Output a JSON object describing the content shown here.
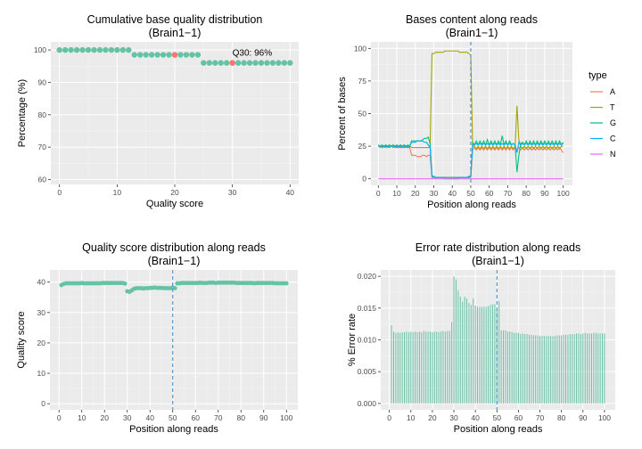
{
  "chart_data": [
    {
      "type": "scatter",
      "title": "Cumulative base quality distribution",
      "subtitle": "(Brain1−1)",
      "xlabel": "Quality score",
      "ylabel": "Percentage (%)",
      "xlim": [
        -1.5,
        41.5
      ],
      "ylim": [
        58.5,
        102.5
      ],
      "xticks": [
        0,
        10,
        20,
        30,
        40
      ],
      "yticks": [
        60,
        70,
        80,
        90,
        100
      ],
      "x": [
        0,
        1,
        2,
        3,
        4,
        5,
        6,
        7,
        8,
        9,
        10,
        11,
        12,
        13,
        14,
        15,
        16,
        17,
        18,
        19,
        20,
        21,
        22,
        23,
        24,
        25,
        26,
        27,
        28,
        29,
        30,
        31,
        32,
        33,
        34,
        35,
        36,
        37,
        38,
        39,
        40
      ],
      "y": [
        100,
        100,
        100,
        100,
        100,
        100,
        100,
        100,
        100,
        100,
        100,
        100,
        100,
        98.5,
        98.5,
        98.5,
        98.5,
        98.5,
        98.5,
        98.5,
        98.5,
        98.5,
        98.5,
        98.5,
        98.5,
        96,
        96,
        96,
        96,
        96,
        96,
        96,
        96,
        96,
        96,
        96,
        96,
        96,
        96,
        96,
        96
      ],
      "highlight": [
        {
          "x": 20,
          "y": 98.5
        },
        {
          "x": 30,
          "y": 96
        }
      ],
      "annotation": {
        "text": "Q30: 96%",
        "x": 30,
        "y": 96
      },
      "colors": {
        "points": "#66c2a5",
        "highlight": "#f8766d"
      }
    },
    {
      "type": "line",
      "title": "Bases content along reads",
      "subtitle": "(Brain1−1)",
      "xlabel": "Position along reads",
      "ylabel": "Percent of bases",
      "xlim": [
        -4,
        105
      ],
      "ylim": [
        -5,
        105
      ],
      "xticks": [
        0,
        10,
        20,
        30,
        40,
        50,
        60,
        70,
        80,
        90,
        100
      ],
      "yticks": [
        0,
        25,
        50,
        75,
        100
      ],
      "vline": 50,
      "legend_title": "type",
      "legend_position": "right",
      "series": [
        {
          "name": "A",
          "color": "#f8766d",
          "values": [
            25,
            24,
            25,
            24,
            25,
            24,
            25,
            25,
            25,
            24,
            24,
            24,
            24,
            24,
            24,
            24,
            24,
            24,
            18,
            18,
            18,
            17,
            17,
            17,
            18,
            18,
            17,
            18,
            18,
            1,
            1,
            1,
            1,
            1,
            1,
            1,
            1,
            1,
            1,
            1,
            1,
            1,
            1,
            1,
            1,
            1,
            1,
            1,
            1,
            1,
            1,
            22,
            24,
            22,
            24,
            22,
            24,
            22,
            24,
            22,
            24,
            22,
            24,
            22,
            24,
            22,
            24,
            22,
            24,
            22,
            24,
            22,
            24,
            22,
            24,
            22,
            24,
            22,
            24,
            22,
            24,
            22,
            24,
            22,
            24,
            22,
            24,
            22,
            24,
            22,
            24,
            22,
            24,
            22,
            24,
            22,
            24,
            22,
            24,
            22,
            20
          ]
        },
        {
          "name": "T",
          "color": "#a3a500",
          "values": [
            25,
            25,
            25,
            25,
            25,
            25,
            25,
            25,
            25,
            25,
            25,
            25,
            25,
            25,
            25,
            25,
            25,
            25,
            24,
            24,
            24,
            24,
            24,
            24,
            24,
            24,
            24,
            24,
            24,
            96,
            96,
            97,
            97,
            97,
            97,
            97,
            98,
            98,
            98,
            98,
            98,
            98,
            98,
            98,
            97,
            97,
            97,
            97,
            97,
            96,
            95,
            25,
            25,
            23,
            25,
            23,
            25,
            23,
            25,
            23,
            25,
            23,
            25,
            23,
            25,
            23,
            25,
            23,
            25,
            23,
            25,
            23,
            25,
            23,
            25,
            56,
            30,
            25,
            23,
            25,
            23,
            25,
            23,
            25,
            23,
            25,
            23,
            25,
            23,
            25,
            23,
            25,
            23,
            25,
            23,
            25,
            23,
            25,
            23,
            25,
            25
          ]
        },
        {
          "name": "G",
          "color": "#00bf7d",
          "values": [
            26,
            25,
            26,
            25,
            26,
            25,
            26,
            25,
            26,
            25,
            26,
            25,
            26,
            25,
            26,
            25,
            26,
            25,
            29,
            29,
            29,
            29,
            29,
            29,
            30,
            31,
            31,
            32,
            27,
            2,
            2,
            1,
            1,
            1,
            1,
            1,
            1,
            1,
            1,
            1,
            1,
            1,
            1,
            1,
            1,
            1,
            1,
            1,
            1,
            1,
            2,
            28,
            26,
            29,
            26,
            29,
            26,
            29,
            26,
            30,
            26,
            29,
            26,
            29,
            26,
            29,
            26,
            33,
            26,
            29,
            26,
            29,
            26,
            27,
            26,
            5,
            18,
            27,
            28,
            26,
            29,
            26,
            29,
            26,
            29,
            26,
            29,
            26,
            29,
            26,
            29,
            26,
            29,
            26,
            29,
            26,
            29,
            26,
            29,
            26,
            28
          ]
        },
        {
          "name": "C",
          "color": "#00b0f6",
          "values": [
            25,
            25,
            24,
            25,
            24,
            25,
            24,
            25,
            24,
            25,
            24,
            25,
            24,
            25,
            24,
            25,
            24,
            25,
            28,
            28,
            28,
            29,
            29,
            29,
            29,
            28,
            28,
            26,
            24,
            2,
            1,
            1,
            1,
            1,
            1,
            1,
            0,
            0,
            0,
            0,
            0,
            0,
            0,
            0,
            1,
            1,
            1,
            1,
            1,
            2,
            2,
            26,
            26,
            27,
            26,
            27,
            26,
            27,
            26,
            27,
            26,
            27,
            26,
            27,
            26,
            27,
            26,
            27,
            26,
            27,
            26,
            27,
            26,
            27,
            26,
            20,
            28,
            26,
            27,
            26,
            27,
            26,
            27,
            26,
            27,
            26,
            27,
            26,
            27,
            26,
            27,
            26,
            27,
            26,
            27,
            26,
            27,
            26,
            27,
            26,
            27
          ]
        },
        {
          "name": "N",
          "color": "#e76bf3",
          "values": [
            0,
            0,
            0,
            0,
            0,
            0,
            0,
            0,
            0,
            0,
            0,
            0,
            0,
            0,
            0,
            0,
            0,
            0,
            0,
            0,
            0,
            0,
            0,
            0,
            0,
            0,
            0,
            0,
            0,
            0,
            0,
            0,
            0,
            0,
            0,
            0,
            0,
            0,
            0,
            0,
            0,
            0,
            0,
            0,
            0,
            0,
            0,
            0,
            0,
            0,
            0,
            0,
            0,
            0,
            0,
            0,
            0,
            0,
            0,
            0,
            0,
            0,
            0,
            0,
            0,
            0,
            0,
            0,
            0,
            0,
            0,
            0,
            0,
            0,
            0,
            0,
            0,
            0,
            0,
            0,
            0,
            0,
            0,
            0,
            0,
            0,
            0,
            0,
            0,
            0,
            0,
            0,
            0,
            0,
            0,
            0,
            0,
            0,
            0,
            0,
            0
          ]
        }
      ]
    },
    {
      "type": "scatter",
      "title": "Quality score distribution along reads",
      "subtitle": "(Brain1−1)",
      "xlabel": "Position along reads",
      "ylabel": "Quality score",
      "xlim": [
        -4,
        105
      ],
      "ylim": [
        -2,
        44
      ],
      "xticks": [
        0,
        10,
        20,
        30,
        40,
        50,
        60,
        70,
        80,
        90,
        100
      ],
      "yticks": [
        0,
        10,
        20,
        30,
        40
      ],
      "vline": 50,
      "x_start": 1,
      "values": [
        39,
        39.4,
        39.6,
        39.6,
        39.6,
        39.6,
        39.6,
        39.6,
        39.6,
        39.7,
        39.6,
        39.6,
        39.6,
        39.6,
        39.6,
        39.6,
        39.6,
        39.6,
        39.7,
        39.7,
        39.7,
        39.7,
        39.7,
        39.7,
        39.7,
        39.7,
        39.7,
        39.7,
        39.5,
        37,
        36.8,
        37.3,
        37.8,
        38,
        38,
        38,
        37.9,
        38,
        38,
        38.1,
        38.1,
        38.2,
        38.1,
        38.1,
        38.1,
        38,
        38,
        38,
        38,
        38.2,
        38,
        39.6,
        39.6,
        39.7,
        39.7,
        39.7,
        39.7,
        39.7,
        39.7,
        39.7,
        39.7,
        39.8,
        39.7,
        39.7,
        39.7,
        39.8,
        39.8,
        39.8,
        39.7,
        39.8,
        39.8,
        39.8,
        39.8,
        39.8,
        39.8,
        39.8,
        39.8,
        39.7,
        39.7,
        39.7,
        39.7,
        39.7,
        39.7,
        39.7,
        39.7,
        39.6,
        39.7,
        39.7,
        39.7,
        39.7,
        39.7,
        39.7,
        39.7,
        39.7,
        39.6,
        39.6,
        39.6,
        39.6,
        39.6,
        39.6
      ],
      "colors": {
        "points": "#66c2a5"
      }
    },
    {
      "type": "bar",
      "title": "Error rate distribution along reads",
      "subtitle": "(Brain1−1)",
      "xlabel": "Position along reads",
      "ylabel": "% Error rate",
      "xlim": [
        -4,
        105
      ],
      "ylim": [
        -0.001,
        0.021
      ],
      "xticks": [
        0,
        10,
        20,
        30,
        40,
        50,
        60,
        70,
        80,
        90,
        100
      ],
      "yticks": [
        0,
        0.005,
        0.01,
        0.015,
        0.02
      ],
      "ytick_labels": [
        "0.000",
        "0.005",
        "0.010",
        "0.015",
        "0.020"
      ],
      "vline": 50,
      "x_start": 1,
      "values": [
        0.0123,
        0.0113,
        0.0111,
        0.0112,
        0.0111,
        0.0112,
        0.0112,
        0.0113,
        0.0112,
        0.0113,
        0.0112,
        0.0113,
        0.0112,
        0.0113,
        0.0112,
        0.0114,
        0.0113,
        0.0113,
        0.0113,
        0.0112,
        0.0113,
        0.0113,
        0.0112,
        0.0113,
        0.0114,
        0.0113,
        0.0114,
        0.0114,
        0.0128,
        0.02,
        0.0195,
        0.0178,
        0.0168,
        0.016,
        0.0168,
        0.0165,
        0.0158,
        0.0155,
        0.0165,
        0.0154,
        0.0152,
        0.0152,
        0.0152,
        0.0152,
        0.0152,
        0.0153,
        0.0155,
        0.0156,
        0.0156,
        0.0148,
        0.0161,
        0.0115,
        0.0115,
        0.0115,
        0.0113,
        0.0113,
        0.0112,
        0.0111,
        0.0111,
        0.0111,
        0.0109,
        0.011,
        0.0109,
        0.0109,
        0.0108,
        0.0108,
        0.0107,
        0.0107,
        0.0107,
        0.0106,
        0.0106,
        0.0106,
        0.0106,
        0.0106,
        0.0106,
        0.0106,
        0.0106,
        0.0107,
        0.0107,
        0.0107,
        0.0108,
        0.0108,
        0.0108,
        0.0109,
        0.0109,
        0.0109,
        0.011,
        0.011,
        0.0109,
        0.011,
        0.0111,
        0.011,
        0.011,
        0.011,
        0.0111,
        0.0111,
        0.011,
        0.011,
        0.011,
        0.011
      ],
      "colors": {
        "bars": "#66c2a5"
      }
    }
  ]
}
